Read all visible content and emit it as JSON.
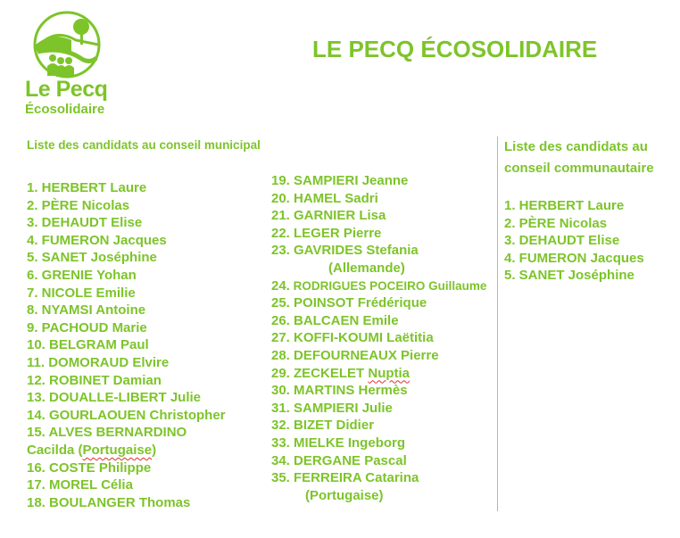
{
  "brand": {
    "logo_line1": "Le Pecq",
    "logo_line2": "Écosolidaire",
    "color": "#7dc42a"
  },
  "title": "LE PECQ ÉCOSOLIDAIRE",
  "municipal": {
    "heading": "Liste des candidats au conseil municipal",
    "col1": [
      "1. HERBERT Laure",
      "2. PÈRE Nicolas",
      "3. DEHAUDT Elise",
      "4. FUMERON Jacques",
      "5. SANET Joséphine",
      "6. GRENIE Yohan",
      "7. NICOLE Emilie",
      "8. NYAMSI Antoine",
      "9. PACHOUD Marie",
      "10. BELGRAM Paul",
      "11. DOMORAUD Elvire",
      "12. ROBINET Damian",
      "13. DOUALLE-LIBERT Julie",
      "14. GOURLAOUEN Christopher",
      "15. ALVES BERNARDINO"
    ],
    "col1_cont": "Cacilda (",
    "col1_cont_word": "Portugaise",
    "col1_cont_end": ")",
    "col1b": [
      "16. COSTE Philippe",
      "17. MOREL Célia",
      "18. BOULANGER Thomas"
    ],
    "col2a": [
      "19. SAMPIERI Jeanne",
      "20. HAMEL Sadri",
      "21. GARNIER Lisa",
      "22. LEGER Pierre",
      "23. GAVRIDES Stefania"
    ],
    "col2_note23": "(Allemande)",
    "item24_num": "24.",
    "item24_name": "RODRIGUES POCEIRO Guillaume",
    "col2b": [
      "25. POINSOT Frédérique",
      "26. BALCAEN Emile",
      "27. KOFFI-KOUMI Laëtitia",
      "28. DEFOURNEAUX Pierre"
    ],
    "item29_prefix": "29. ZECKELET ",
    "item29_word": "Nuptia",
    "col2c": [
      "30. MARTINS Hermès",
      "31. SAMPIERI Julie",
      "32. BIZET Didier",
      "33. MIELKE Ingeborg",
      "34. DERGANE Pascal",
      "35. FERREIRA Catarina"
    ],
    "col2_note35": "(Portugaise)"
  },
  "communautaire": {
    "heading": "Liste des candidats au conseil communautaire",
    "items": [
      "1. HERBERT Laure",
      "2. PÈRE Nicolas",
      "3. DEHAUDT Elise",
      "4. FUMERON Jacques",
      "5. SANET Joséphine"
    ]
  }
}
